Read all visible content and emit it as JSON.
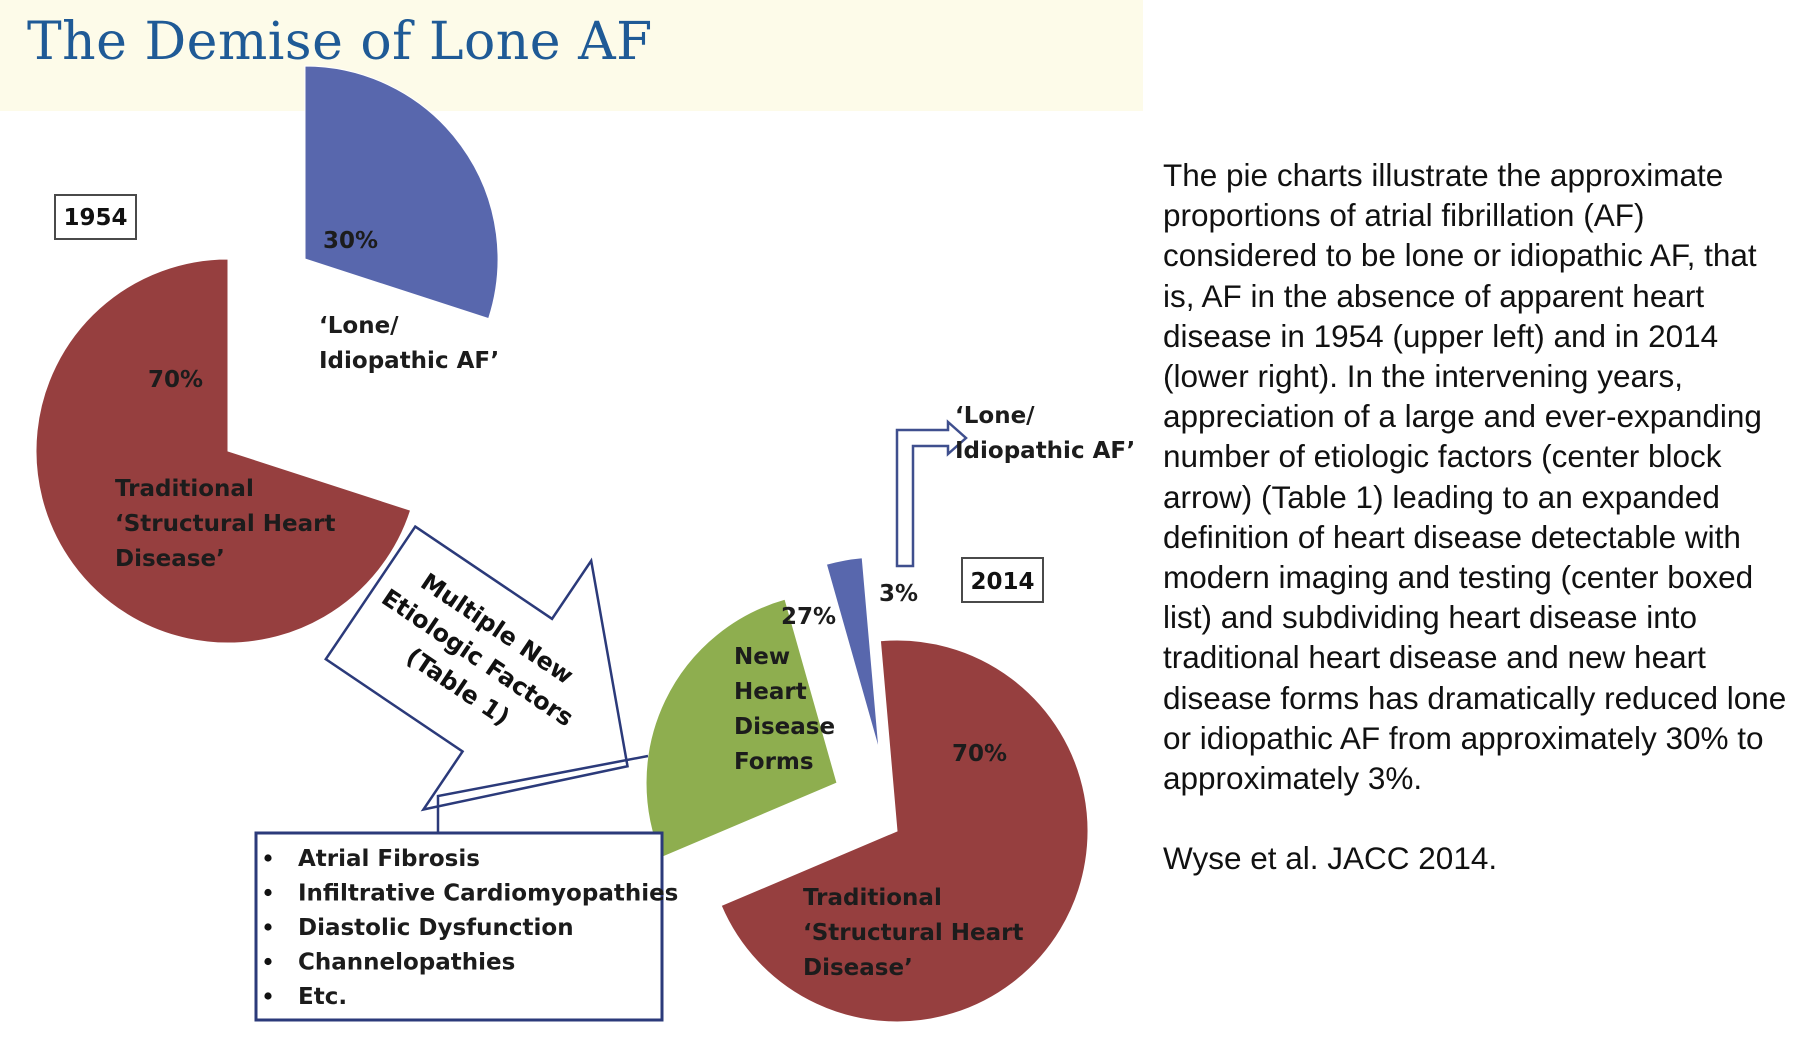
{
  "title": "The Demise of Lone AF",
  "chart_data": [
    {
      "type": "pie",
      "year_label": "1954",
      "slices": [
        {
          "value": 70,
          "value_label": "70%",
          "label": [
            "Traditional",
            "‘Structural Heart",
            "Disease’"
          ],
          "color": "#963f3f"
        },
        {
          "value": 30,
          "value_label": "30%",
          "label": [
            "‘Lone/",
            "Idiopathic AF’"
          ],
          "color": "#5867ad"
        }
      ]
    },
    {
      "type": "pie",
      "year_label": "2014",
      "slices": [
        {
          "value": 70,
          "value_label": "70%",
          "label": [
            "Traditional",
            "‘Structural Heart",
            "Disease’"
          ],
          "color": "#963f3f"
        },
        {
          "value": 27,
          "value_label": "27%",
          "label": [
            "New",
            "Heart",
            "Disease",
            "Forms"
          ],
          "color": "#8eae4f"
        },
        {
          "value": 3,
          "value_label": "3%",
          "label": [
            "‘Lone/",
            "Idiopathic AF’"
          ],
          "color": "#5867ad"
        }
      ]
    }
  ],
  "center_arrow": {
    "lines": [
      "Multiple New",
      "Etiologic Factors",
      "(Table 1)"
    ]
  },
  "new_forms_list": [
    "Atrial Fibrosis",
    "Infiltrative Cardiomyopathies",
    "Diastolic Dysfunction",
    "Channelopathies",
    "Etc."
  ],
  "caption": {
    "text": "The pie charts illustrate the approximate proportions of atrial fibrillation (AF) considered to be lone or idiopathic AF, that is, AF in the absence of apparent heart disease in 1954 (upper left) and in 2014 (lower right). In the intervening years, appreciation of a large and ever-expanding number of etiologic factors (center block arrow) (Table 1) leading to an expanded definition of heart disease detectable with modern imaging and testing (center boxed list) and subdividing heart disease into traditional heart disease and new heart disease forms has dramatically reduced lone or idiopathic AF from approximately 30% to approximately 3%.",
    "citation": "Wyse et al. JACC 2014."
  }
}
